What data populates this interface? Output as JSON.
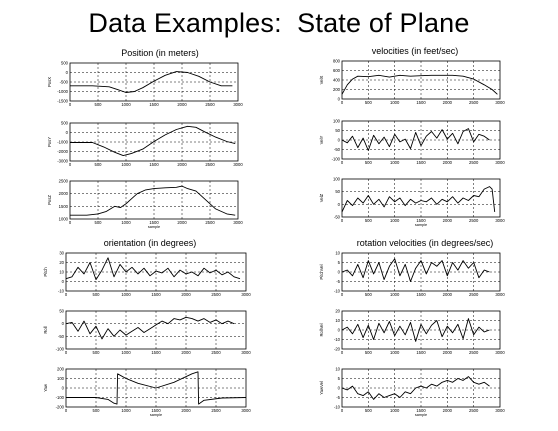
{
  "slide": {
    "title": "Data Examples:  State of Plane",
    "groups": [
      {
        "id": "position",
        "title": "Position (in meters)"
      },
      {
        "id": "velocities",
        "title": "velocities (in feet/sec)"
      },
      {
        "id": "orientation",
        "title": "orientation (in degrees)"
      },
      {
        "id": "rotation",
        "title": "rotation velocities (in degrees/sec)"
      }
    ]
  },
  "chart_data": [
    {
      "type": "line",
      "group": "position",
      "xlabel": "",
      "ylabel": "PosX",
      "xlim": [
        0,
        3000
      ],
      "ylim": [
        -1500,
        500
      ],
      "yticks": [
        "500",
        "0",
        "-500",
        "-1000",
        "-1500"
      ],
      "xticks": [
        "0",
        "500",
        "1000",
        "1500",
        "2000",
        "2500",
        "3000"
      ],
      "x": [
        0,
        400,
        700,
        850,
        1000,
        1150,
        1300,
        1500,
        1700,
        1900,
        2100,
        2300,
        2500,
        2700,
        2900
      ],
      "y": [
        -700,
        -700,
        -750,
        -900,
        -1050,
        -1000,
        -800,
        -450,
        -150,
        50,
        0,
        -200,
        -500,
        -700,
        -700
      ]
    },
    {
      "type": "line",
      "group": "position",
      "xlabel": "",
      "ylabel": "PosY",
      "xlim": [
        0,
        3000
      ],
      "ylim": [
        -3000,
        500
      ],
      "yticks": [
        "500",
        "0",
        "-1000",
        "-2000",
        "-3000"
      ],
      "xticks": [
        "0",
        "500",
        "1000",
        "1500",
        "2000",
        "2500",
        "3000"
      ],
      "x": [
        0,
        400,
        600,
        800,
        950,
        1100,
        1300,
        1500,
        1700,
        1900,
        2100,
        2250,
        2400,
        2600,
        2800,
        2950
      ],
      "y": [
        -1300,
        -1300,
        -1700,
        -2200,
        -2500,
        -2300,
        -1900,
        -1200,
        -600,
        -100,
        200,
        100,
        -300,
        -800,
        -1200,
        -1400
      ]
    },
    {
      "type": "line",
      "group": "position",
      "xlabel": "sample",
      "ylabel": "PosZ",
      "xlim": [
        0,
        3000
      ],
      "ylim": [
        1000,
        2500
      ],
      "yticks": [
        "2500",
        "2000",
        "1500",
        "1000"
      ],
      "xticks": [
        "0",
        "500",
        "1000",
        "1500",
        "2000",
        "2500",
        "3000"
      ],
      "x": [
        0,
        300,
        500,
        650,
        800,
        900,
        1000,
        1100,
        1200,
        1350,
        1500,
        1700,
        1900,
        2000,
        2100,
        2250,
        2400,
        2600,
        2800,
        2950
      ],
      "y": [
        1150,
        1150,
        1200,
        1300,
        1500,
        1450,
        1600,
        1800,
        2000,
        2150,
        2200,
        2230,
        2250,
        2300,
        2200,
        2100,
        1800,
        1400,
        1200,
        1150
      ]
    },
    {
      "type": "line",
      "group": "velocities",
      "xlabel": "",
      "ylabel": "VelX",
      "xlim": [
        0,
        3000
      ],
      "ylim": [
        0,
        800
      ],
      "yticks": [
        "800",
        "600",
        "400",
        "200",
        "0"
      ],
      "xticks": [
        "0",
        "500",
        "1000",
        "1500",
        "2000",
        "2500",
        "3000"
      ],
      "x": [
        0,
        100,
        200,
        300,
        500,
        700,
        900,
        1100,
        1300,
        1500,
        1700,
        1900,
        2100,
        2300,
        2500,
        2700,
        2850,
        2950
      ],
      "y": [
        100,
        300,
        420,
        480,
        470,
        500,
        460,
        500,
        480,
        490,
        500,
        500,
        500,
        480,
        420,
        300,
        200,
        100
      ]
    },
    {
      "type": "line",
      "group": "velocities",
      "xlabel": "",
      "ylabel": "VelY",
      "xlim": [
        0,
        3000
      ],
      "ylim": [
        -100,
        100
      ],
      "yticks": [
        "100",
        "50",
        "0",
        "-50",
        "-100"
      ],
      "xticks": [
        "0",
        "500",
        "1000",
        "1500",
        "2000",
        "2500",
        "3000"
      ],
      "x": [
        0,
        100,
        200,
        300,
        400,
        500,
        600,
        700,
        800,
        900,
        1000,
        1100,
        1200,
        1300,
        1400,
        1500,
        1600,
        1700,
        1800,
        1900,
        2000,
        2100,
        2200,
        2300,
        2400,
        2500,
        2600,
        2700,
        2800
      ],
      "y": [
        0,
        -15,
        20,
        -40,
        10,
        -55,
        25,
        -20,
        15,
        -35,
        30,
        -10,
        5,
        -45,
        40,
        -30,
        20,
        45,
        10,
        55,
        5,
        35,
        -20,
        45,
        60,
        -10,
        30,
        20,
        0
      ]
    },
    {
      "type": "line",
      "group": "velocities",
      "xlabel": "sample",
      "ylabel": "VelZ",
      "xlim": [
        0,
        3000
      ],
      "ylim": [
        -50,
        100
      ],
      "yticks": [
        "100",
        "50",
        "0",
        "-50"
      ],
      "xticks": [
        "0",
        "500",
        "1000",
        "1500",
        "2000",
        "2500",
        "3000"
      ],
      "x": [
        0,
        100,
        200,
        300,
        400,
        500,
        600,
        700,
        800,
        900,
        1000,
        1100,
        1200,
        1300,
        1400,
        1500,
        1600,
        1700,
        1800,
        1900,
        2000,
        2100,
        2200,
        2300,
        2400,
        2500,
        2600,
        2700,
        2800,
        2850,
        2900
      ],
      "y": [
        -30,
        15,
        -5,
        25,
        5,
        35,
        0,
        20,
        -10,
        30,
        10,
        25,
        -5,
        20,
        5,
        15,
        10,
        25,
        0,
        20,
        10,
        30,
        5,
        25,
        15,
        35,
        30,
        60,
        70,
        60,
        -30
      ]
    },
    {
      "type": "line",
      "group": "orientation",
      "xlabel": "",
      "ylabel": "Pitch",
      "xlim": [
        0,
        3000
      ],
      "ylim": [
        -10,
        30
      ],
      "yticks": [
        "30",
        "20",
        "10",
        "0",
        "-10"
      ],
      "xticks": [
        "0",
        "500",
        "1000",
        "1500",
        "2000",
        "2500",
        "3000"
      ],
      "x": [
        0,
        100,
        200,
        300,
        400,
        500,
        600,
        700,
        800,
        900,
        1000,
        1100,
        1200,
        1300,
        1400,
        1500,
        1600,
        1700,
        1800,
        1900,
        2000,
        2100,
        2200,
        2300,
        2400,
        2500,
        2600,
        2700,
        2800,
        2900
      ],
      "y": [
        3,
        5,
        15,
        8,
        20,
        2,
        12,
        25,
        5,
        18,
        10,
        15,
        8,
        14,
        6,
        11,
        9,
        14,
        5,
        12,
        8,
        10,
        6,
        14,
        9,
        12,
        7,
        10,
        5,
        3
      ]
    },
    {
      "type": "line",
      "group": "orientation",
      "xlabel": "",
      "ylabel": "Roll",
      "xlim": [
        0,
        3000
      ],
      "ylim": [
        -100,
        50
      ],
      "yticks": [
        "50",
        "0",
        "-50",
        "-100"
      ],
      "xticks": [
        "0",
        "500",
        "1000",
        "1500",
        "2000",
        "2500",
        "3000"
      ],
      "x": [
        0,
        100,
        200,
        300,
        400,
        500,
        600,
        700,
        800,
        900,
        1000,
        1100,
        1200,
        1300,
        1400,
        1500,
        1600,
        1700,
        1800,
        1900,
        2000,
        2100,
        2200,
        2300,
        2400,
        2500,
        2600,
        2700,
        2800
      ],
      "y": [
        0,
        5,
        -30,
        10,
        -40,
        -10,
        -60,
        -20,
        -50,
        -25,
        -45,
        -30,
        -15,
        -35,
        -20,
        -5,
        10,
        0,
        20,
        15,
        25,
        20,
        10,
        20,
        5,
        15,
        0,
        10,
        0
      ]
    },
    {
      "type": "line",
      "group": "orientation",
      "xlabel": "sample",
      "ylabel": "Yaw",
      "xlim": [
        0,
        3000
      ],
      "ylim": [
        -200,
        200
      ],
      "yticks": [
        "200",
        "100",
        "0",
        "-100",
        "-200"
      ],
      "xticks": [
        "0",
        "500",
        "1000",
        "1500",
        "2000",
        "2500",
        "3000"
      ],
      "x": [
        0,
        500,
        700,
        800,
        850,
        860,
        1000,
        1200,
        1500,
        1800,
        2100,
        2200,
        2210,
        2300,
        2600,
        3000
      ],
      "y": [
        -100,
        -100,
        -120,
        -160,
        -170,
        150,
        100,
        50,
        0,
        60,
        150,
        170,
        -170,
        -130,
        -105,
        -100
      ]
    },
    {
      "type": "line",
      "group": "rotation",
      "xlabel": "",
      "ylabel": "PitchVel",
      "xlim": [
        0,
        3000
      ],
      "ylim": [
        -10,
        10
      ],
      "yticks": [
        "10",
        "5",
        "0",
        "-5",
        "-10"
      ],
      "xticks": [
        "0",
        "500",
        "1000",
        "1500",
        "2000",
        "2500",
        "3000"
      ],
      "x": [
        0,
        100,
        200,
        300,
        400,
        500,
        600,
        700,
        800,
        900,
        1000,
        1100,
        1200,
        1300,
        1400,
        1500,
        1600,
        1700,
        1800,
        1900,
        2000,
        2100,
        2200,
        2300,
        2400,
        2500,
        2600,
        2700,
        2800
      ],
      "y": [
        0,
        1,
        -2,
        4,
        -3,
        6,
        -1,
        5,
        -4,
        3,
        7,
        -2,
        4,
        -5,
        2,
        6,
        -1,
        5,
        3,
        6,
        -2,
        5,
        1,
        6,
        2,
        5,
        -3,
        1,
        0
      ]
    },
    {
      "type": "line",
      "group": "rotation",
      "xlabel": "",
      "ylabel": "RollVel",
      "xlim": [
        0,
        3000
      ],
      "ylim": [
        -20,
        20
      ],
      "yticks": [
        "20",
        "10",
        "0",
        "-10",
        "-20"
      ],
      "xticks": [
        "0",
        "500",
        "1000",
        "1500",
        "2000",
        "2500",
        "3000"
      ],
      "x": [
        0,
        100,
        200,
        300,
        400,
        500,
        600,
        700,
        800,
        900,
        1000,
        1100,
        1200,
        1300,
        1400,
        1500,
        1600,
        1700,
        1800,
        1900,
        2000,
        2100,
        2200,
        2300,
        2400,
        2500,
        2600,
        2700,
        2800
      ],
      "y": [
        0,
        3,
        -4,
        6,
        -8,
        5,
        -10,
        7,
        -3,
        9,
        -6,
        4,
        -5,
        8,
        -12,
        6,
        -4,
        5,
        10,
        -7,
        4,
        -3,
        6,
        -9,
        12,
        -5,
        3,
        -2,
        0
      ]
    },
    {
      "type": "line",
      "group": "rotation",
      "xlabel": "sample",
      "ylabel": "YawVel",
      "xlim": [
        0,
        3000
      ],
      "ylim": [
        -10,
        10
      ],
      "yticks": [
        "10",
        "5",
        "0",
        "-5",
        "-10"
      ],
      "xticks": [
        "0",
        "500",
        "1000",
        "1500",
        "2000",
        "2500",
        "3000"
      ],
      "x": [
        0,
        100,
        200,
        300,
        400,
        500,
        600,
        700,
        800,
        900,
        1000,
        1100,
        1200,
        1300,
        1400,
        1500,
        1600,
        1700,
        1800,
        1900,
        2000,
        2100,
        2200,
        2300,
        2400,
        2500,
        2600,
        2700,
        2800
      ],
      "y": [
        0,
        -1,
        1,
        -3,
        -4,
        -2,
        -6,
        -3,
        -5,
        -4,
        -3,
        -5,
        -2,
        -3,
        0,
        1,
        0,
        2,
        1,
        3,
        4,
        3,
        5,
        4,
        6,
        3,
        2,
        3,
        1
      ]
    }
  ]
}
